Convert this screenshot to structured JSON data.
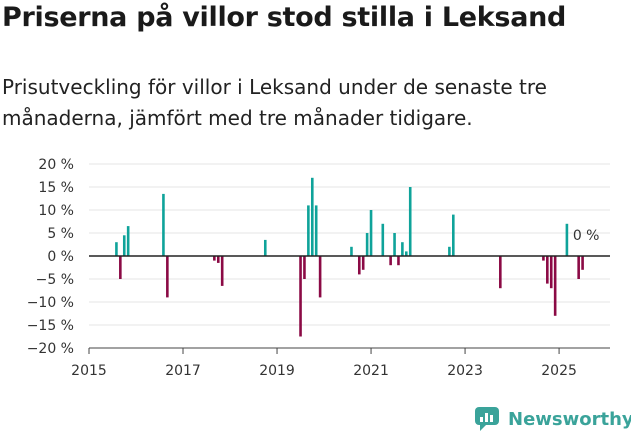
{
  "title": "Priserna på villor stod stilla i Leksand",
  "subtitle": "Prisutveckling för villor i Leksand under de senaste tre månaderna, jämfört med tre månader tidigare.",
  "brand": "Newsworthy",
  "colors": {
    "positive": "#0fa39a",
    "negative": "#8b0a45",
    "zero_line": "#222222",
    "brand": "#3aa39a"
  },
  "chart_data": {
    "type": "bar",
    "ylim": [
      -20,
      20
    ],
    "yticks": [
      20,
      15,
      10,
      5,
      0,
      -5,
      -10,
      -15,
      -20
    ],
    "ytick_labels": [
      "20 %",
      "15 %",
      "10 %",
      "5 %",
      "0 %",
      "−5 %",
      "−10 %",
      "−15 %",
      "−20 %"
    ],
    "xlim": [
      "2015-01",
      "2026-02"
    ],
    "xticks": [
      "2015-01",
      "2017-01",
      "2019-01",
      "2021-01",
      "2023-01",
      "2025-01"
    ],
    "xtick_labels": [
      "2015",
      "2017",
      "2019",
      "2021",
      "2023",
      "2025"
    ],
    "annotation": {
      "x": "2025-04",
      "y": 0,
      "text": "0 %"
    },
    "series": [
      {
        "values": [
          [
            "2015-08",
            3
          ],
          [
            "2015-09",
            -5
          ],
          [
            "2015-10",
            4.5
          ],
          [
            "2015-11",
            6.5
          ],
          [
            "2016-08",
            13.5
          ],
          [
            "2016-09",
            -9
          ],
          [
            "2017-09",
            -1
          ],
          [
            "2017-10",
            -1.5
          ],
          [
            "2017-11",
            -6.5
          ],
          [
            "2018-10",
            3.5
          ],
          [
            "2019-07",
            -17.5
          ],
          [
            "2019-08",
            -5
          ],
          [
            "2019-09",
            11
          ],
          [
            "2019-10",
            17
          ],
          [
            "2019-11",
            11
          ],
          [
            "2019-12",
            -9
          ],
          [
            "2020-08",
            2
          ],
          [
            "2020-10",
            -4
          ],
          [
            "2020-11",
            -3
          ],
          [
            "2020-12",
            5
          ],
          [
            "2021-01",
            10
          ],
          [
            "2021-04",
            7
          ],
          [
            "2021-06",
            -2
          ],
          [
            "2021-07",
            5
          ],
          [
            "2021-08",
            -2
          ],
          [
            "2021-09",
            3
          ],
          [
            "2021-10",
            1
          ],
          [
            "2021-11",
            15
          ],
          [
            "2022-09",
            2
          ],
          [
            "2022-10",
            9
          ],
          [
            "2023-10",
            -7
          ],
          [
            "2024-09",
            -1
          ],
          [
            "2024-10",
            -6
          ],
          [
            "2024-11",
            -7
          ],
          [
            "2024-12",
            -13
          ],
          [
            "2025-03",
            7
          ],
          [
            "2025-06",
            -5
          ],
          [
            "2025-07",
            -3
          ]
        ]
      }
    ]
  }
}
